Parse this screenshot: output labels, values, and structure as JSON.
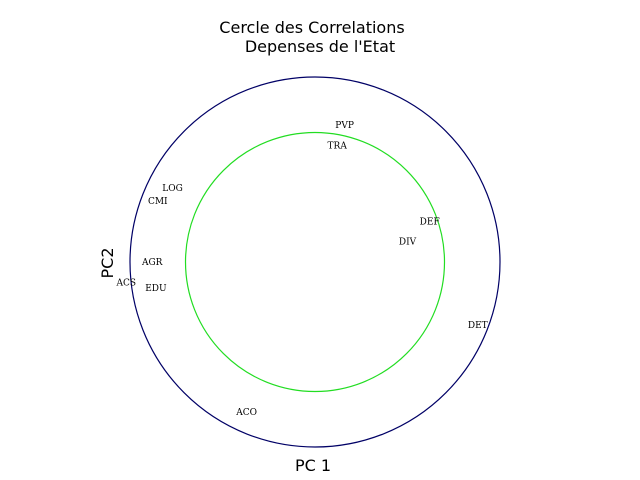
{
  "chart_data": {
    "type": "scatter",
    "title": [
      "Cercle des Correlations",
      "Depenses de l'Etat"
    ],
    "xlabel": "PC 1",
    "ylabel": "PC2",
    "xlim": [
      -1,
      1
    ],
    "ylim": [
      -1,
      1
    ],
    "grid": false,
    "circles": [
      {
        "radius": 1.0,
        "color": "#000066"
      },
      {
        "radius": 0.7,
        "color": "#22dd22"
      }
    ],
    "points": [
      {
        "label": "PVP",
        "x": 0.16,
        "y": 0.74
      },
      {
        "label": "TRA",
        "x": 0.12,
        "y": 0.63
      },
      {
        "label": "LOG",
        "x": -0.77,
        "y": 0.4
      },
      {
        "label": "CMI",
        "x": -0.85,
        "y": 0.33
      },
      {
        "label": "DEF",
        "x": 0.62,
        "y": 0.22
      },
      {
        "label": "DIV",
        "x": 0.5,
        "y": 0.11
      },
      {
        "label": "AGR",
        "x": -0.88,
        "y": 0.0
      },
      {
        "label": "ACS",
        "x": -1.02,
        "y": -0.11
      },
      {
        "label": "EDU",
        "x": -0.86,
        "y": -0.14
      },
      {
        "label": "DET",
        "x": 0.88,
        "y": -0.34
      },
      {
        "label": "ACO",
        "x": -0.37,
        "y": -0.81
      }
    ]
  }
}
